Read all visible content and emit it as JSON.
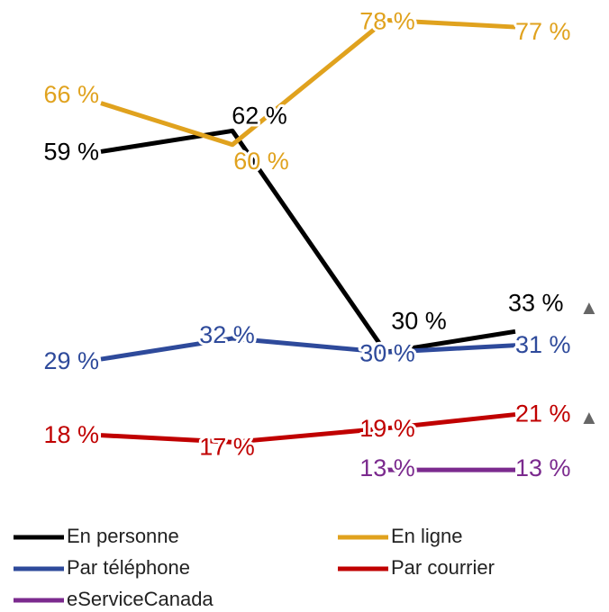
{
  "chart_data": {
    "type": "line",
    "categories": [
      null,
      null,
      null,
      null
    ],
    "ylim": [
      0,
      80
    ],
    "series": [
      {
        "name": "En personne",
        "color": "#000000",
        "values": [
          59,
          62,
          30,
          33
        ],
        "value_labels": [
          "59 %",
          "62 %",
          "30 %",
          "33 %"
        ]
      },
      {
        "name": "En ligne",
        "color": "#e0a21e",
        "values": [
          66,
          60,
          78,
          77
        ],
        "value_labels": [
          "66 %",
          "60 %",
          "78 %",
          "77 %"
        ]
      },
      {
        "name": "Par téléphone",
        "color": "#2e4a9b",
        "values": [
          29,
          32,
          30,
          31
        ],
        "value_labels": [
          "29 %",
          "32 %",
          "30 %",
          "31 %"
        ]
      },
      {
        "name": "Par courrier",
        "color": "#c00000",
        "values": [
          18,
          17,
          19,
          21
        ],
        "value_labels": [
          "18 %",
          "17 %",
          "19 %",
          "21 %"
        ]
      },
      {
        "name": "eServiceCanada",
        "color": "#7b2a8e",
        "values": [
          null,
          null,
          13,
          13
        ],
        "value_labels": [
          null,
          null,
          "13 %",
          "13 %"
        ]
      }
    ],
    "annotations": [
      "▲",
      "▲"
    ]
  }
}
